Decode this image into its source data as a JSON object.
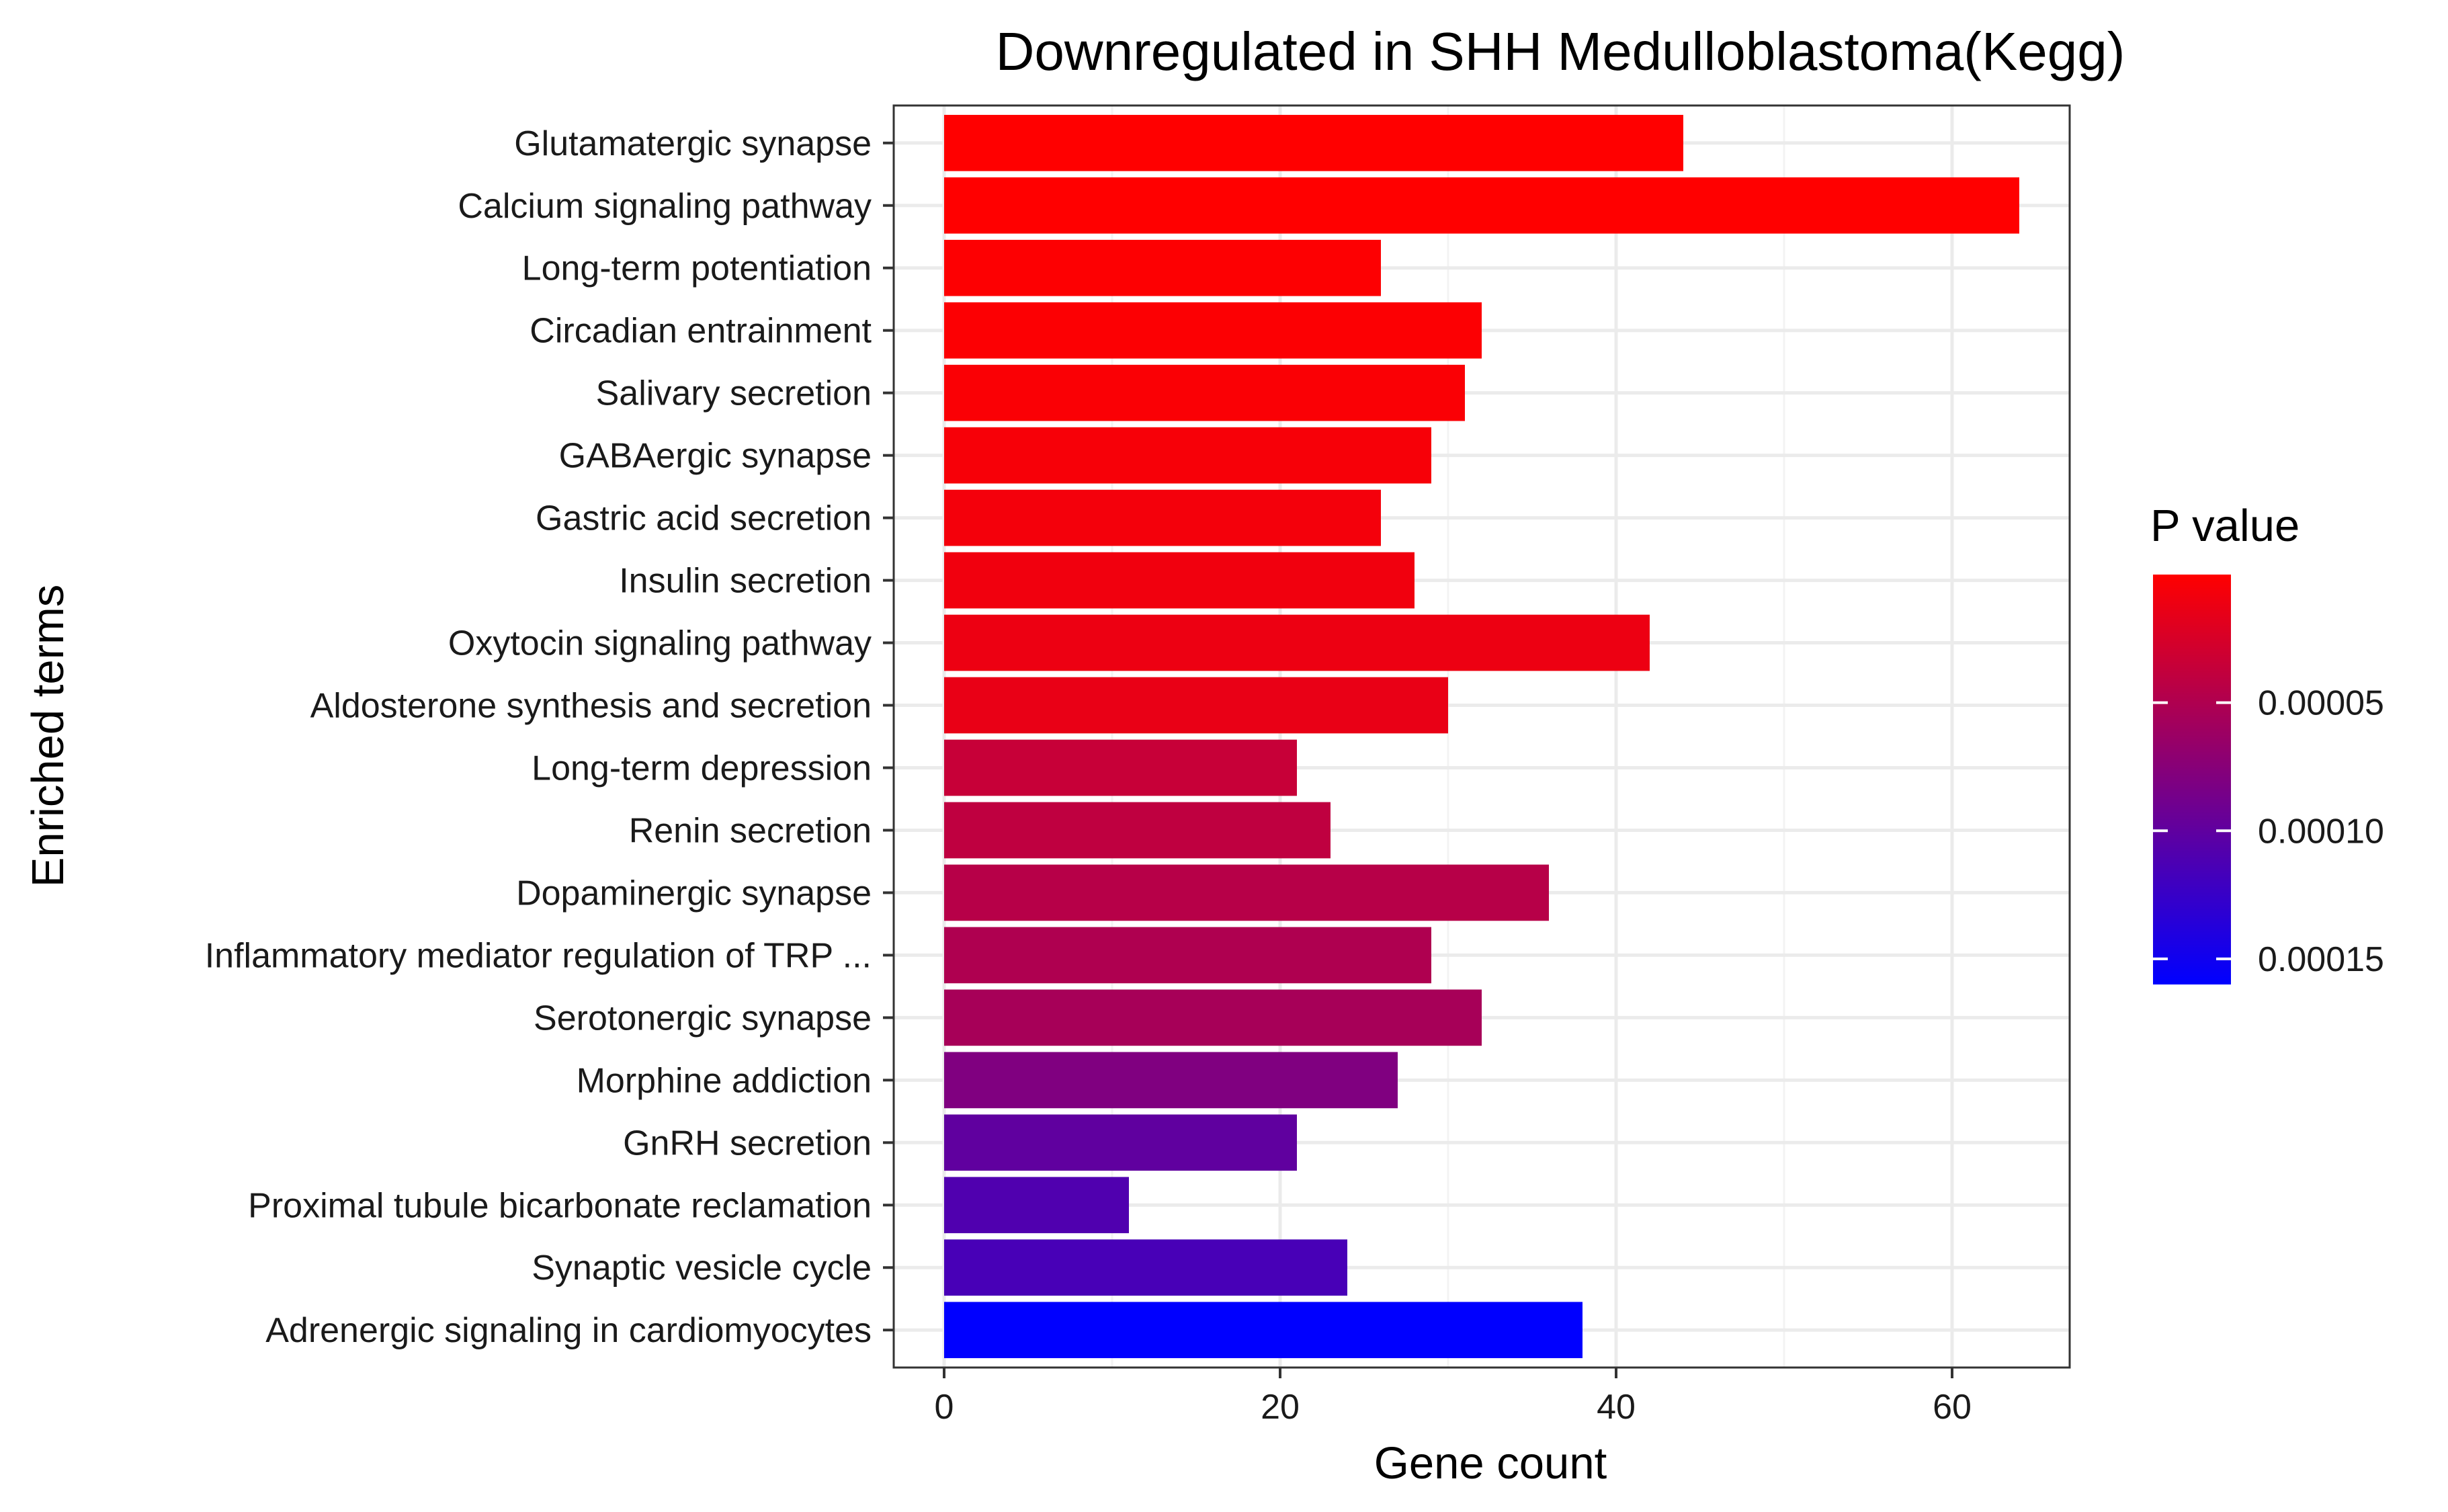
{
  "chart_data": {
    "type": "bar",
    "orientation": "horizontal",
    "title": "Downregulated in SHH Medulloblastoma(Kegg)",
    "xlabel": "Gene count",
    "ylabel": "Enriched terms",
    "xlim": [
      -3,
      67
    ],
    "x_ticks": [
      0,
      20,
      40,
      60
    ],
    "x_tick_labels": [
      "0",
      "20",
      "40",
      "60"
    ],
    "grid": true,
    "categories": [
      "Glutamatergic synapse",
      "Calcium signaling pathway",
      "Long-term potentiation",
      "Circadian entrainment",
      "Salivary secretion",
      "GABAergic synapse",
      "Gastric acid secretion",
      "Insulin secretion",
      "Oxytocin signaling pathway",
      "Aldosterone synthesis and secretion",
      "Long-term depression",
      "Renin secretion",
      "Dopaminergic synapse",
      "Inflammatory mediator regulation of TRP ...",
      "Serotonergic synapse",
      "Morphine addiction",
      "GnRH secretion",
      "Proximal tubule bicarbonate reclamation",
      "Synaptic vesicle cycle",
      "Adrenergic signaling in cardiomyocytes"
    ],
    "values": [
      44,
      64,
      26,
      32,
      31,
      29,
      26,
      28,
      42,
      30,
      21,
      23,
      36,
      29,
      32,
      27,
      21,
      11,
      24,
      38
    ],
    "p_values": [
      1e-07,
      2e-07,
      1e-06,
      2e-06,
      3e-06,
      5e-06,
      7e-06,
      9e-06,
      1.1e-05,
      1.4e-05,
      3.5e-05,
      4e-05,
      4.5e-05,
      5e-05,
      5.5e-05,
      8e-05,
      0.0001,
      0.00011,
      0.000115,
      0.00016
    ],
    "legend": {
      "title": "P value",
      "placement": "right",
      "low_color": "#ff0000",
      "high_color": "#0000ff",
      "range": [
        0,
        0.00016
      ],
      "ticks": [
        5e-05,
        0.0001,
        0.00015
      ],
      "tick_labels": [
        "0.00005",
        "0.00010",
        "0.00015"
      ]
    },
    "colors": {
      "panel_border": "#333333",
      "grid_major": "#ebebeb",
      "grid_minor": "#f3f3f3",
      "tick": "#333333"
    }
  }
}
